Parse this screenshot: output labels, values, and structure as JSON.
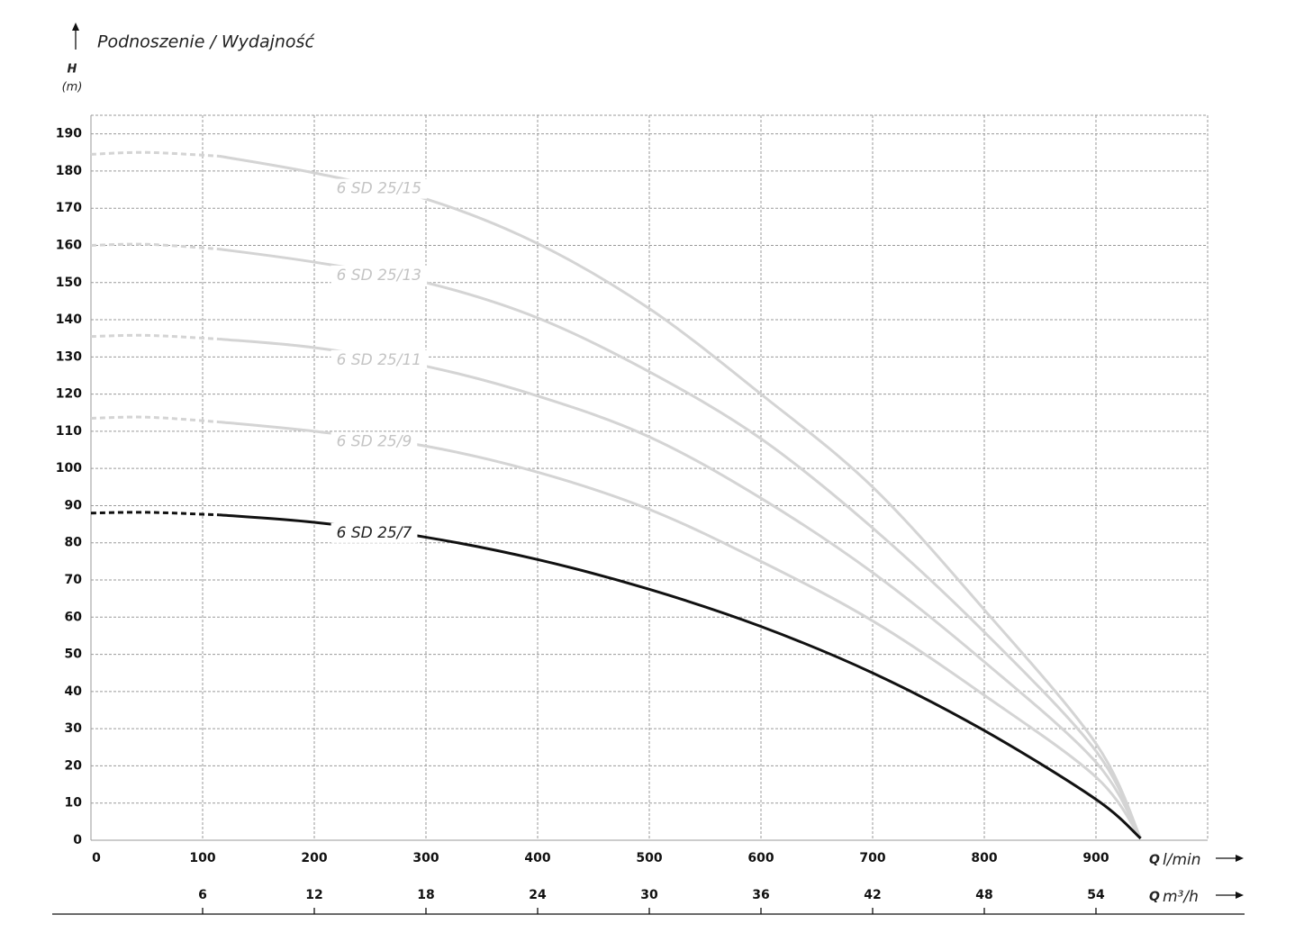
{
  "chart_data": {
    "type": "line",
    "title": "Podnoszenie / Wydajność",
    "y_label": {
      "symbol": "H",
      "unit": "(m)"
    },
    "x_label": {
      "symbol": "Q",
      "unit": "l/min"
    },
    "x2_label": {
      "symbol": "Q",
      "unit": "m³/h"
    },
    "x": [
      0,
      50,
      115,
      200,
      300,
      400,
      500,
      600,
      700,
      800,
      900,
      940
    ],
    "dashed_segments": 2,
    "series": [
      {
        "name": "6 SD 25/15",
        "color": "#d4d4d4",
        "values": [
          184.5,
          185,
          184,
          179.5,
          172.5,
          160.5,
          143,
          120,
          95,
          62,
          26,
          0.5
        ]
      },
      {
        "name": "6 SD 25/13",
        "color": "#d4d4d4",
        "values": [
          160,
          160.3,
          159,
          155.5,
          150,
          140.5,
          126,
          108,
          84,
          56,
          24,
          0.5
        ]
      },
      {
        "name": "6 SD 25/11",
        "color": "#d4d4d4",
        "values": [
          135.5,
          135.8,
          134.8,
          132.5,
          127.5,
          119.5,
          108.5,
          92,
          72,
          48,
          21,
          0.5
        ]
      },
      {
        "name": "6 SD 25/9",
        "color": "#d4d4d4",
        "values": [
          113.5,
          113.8,
          112.5,
          110,
          106,
          99,
          89,
          75,
          59,
          39,
          17,
          0.5
        ]
      },
      {
        "name": "6 SD 25/7",
        "color": "#111111",
        "values": [
          88,
          88.2,
          87.5,
          85.5,
          81.5,
          75.5,
          67.5,
          57.5,
          45,
          29.5,
          11,
          0.5
        ]
      }
    ],
    "xlim": [
      0,
      1000
    ],
    "xticks": [
      0,
      100,
      200,
      300,
      400,
      500,
      600,
      700,
      800,
      900
    ],
    "x2lim": [
      0,
      60
    ],
    "x2ticks": [
      6,
      12,
      18,
      24,
      30,
      36,
      42,
      48,
      54
    ],
    "ylim": [
      0,
      195
    ],
    "yticks": [
      0,
      10,
      20,
      30,
      40,
      50,
      60,
      70,
      80,
      90,
      100,
      110,
      120,
      130,
      140,
      150,
      160,
      170,
      180,
      190
    ],
    "grid": true
  }
}
